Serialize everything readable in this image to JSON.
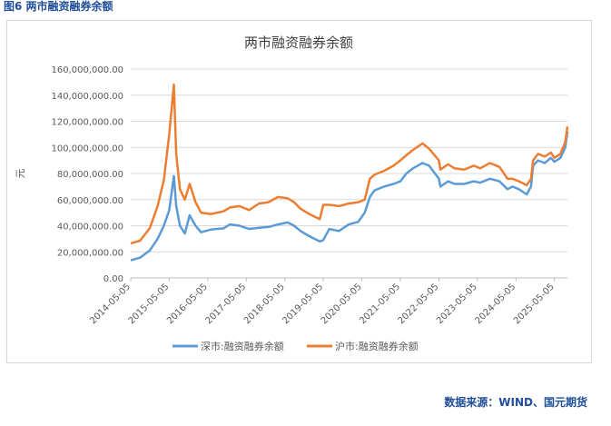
{
  "figure_caption": "图6 两市融资融券余额",
  "source_note": "数据来源：WIND、国元期货",
  "colors": {
    "sz": "#5b9bd5",
    "sh": "#ed7d31",
    "caption": "#1f4e9a"
  },
  "chart_data": {
    "type": "line",
    "title": "两市融资融券余额",
    "xlabel": "",
    "ylabel": "元",
    "ylim": [
      0,
      160000000
    ],
    "xlim": [
      "2014-05-05",
      "2025-09-05"
    ],
    "yticks": [
      0,
      20000000,
      40000000,
      60000000,
      80000000,
      100000000,
      120000000,
      140000000,
      160000000
    ],
    "ytick_labels": [
      "0.00",
      "20,000,000.00",
      "40,000,000.00",
      "60,000,000.00",
      "80,000,000.00",
      "100,000,000.00",
      "120,000,000.00",
      "140,000,000.00",
      "160,000,000.00"
    ],
    "xtick_labels": [
      "2014-05-05",
      "2015-05-05",
      "2016-05-05",
      "2017-05-05",
      "2018-05-05",
      "2019-05-05",
      "2020-05-05",
      "2021-05-05",
      "2022-05-05",
      "2023-05-05",
      "2024-05-05",
      "2025-05-05"
    ],
    "grid": "horizontal",
    "legend_position": "bottom",
    "series": [
      {
        "name": "深市:融资融券余额",
        "color": "#5b9bd5",
        "points": [
          [
            "2014-05-05",
            13500000
          ],
          [
            "2014-08-01",
            15500000
          ],
          [
            "2014-11-01",
            21000000
          ],
          [
            "2015-01-15",
            30000000
          ],
          [
            "2015-03-15",
            40000000
          ],
          [
            "2015-05-05",
            52000000
          ],
          [
            "2015-06-18",
            78000000
          ],
          [
            "2015-07-10",
            55000000
          ],
          [
            "2015-08-15",
            40000000
          ],
          [
            "2015-09-30",
            34000000
          ],
          [
            "2015-11-15",
            48000000
          ],
          [
            "2016-01-10",
            40000000
          ],
          [
            "2016-03-01",
            35000000
          ],
          [
            "2016-06-01",
            37000000
          ],
          [
            "2016-10-01",
            38000000
          ],
          [
            "2016-12-01",
            41000000
          ],
          [
            "2017-03-01",
            40000000
          ],
          [
            "2017-06-01",
            37500000
          ],
          [
            "2017-09-01",
            38500000
          ],
          [
            "2017-12-01",
            39000000
          ],
          [
            "2018-03-01",
            41000000
          ],
          [
            "2018-06-01",
            42500000
          ],
          [
            "2018-08-01",
            40000000
          ],
          [
            "2018-10-01",
            36000000
          ],
          [
            "2018-12-01",
            33000000
          ],
          [
            "2019-01-15",
            31000000
          ],
          [
            "2019-04-01",
            28000000
          ],
          [
            "2019-05-05",
            29000000
          ],
          [
            "2019-07-01",
            37500000
          ],
          [
            "2019-10-01",
            36000000
          ],
          [
            "2020-01-01",
            41000000
          ],
          [
            "2020-04-01",
            43000000
          ],
          [
            "2020-06-01",
            50000000
          ],
          [
            "2020-07-20",
            62000000
          ],
          [
            "2020-09-01",
            67000000
          ],
          [
            "2020-12-01",
            70000000
          ],
          [
            "2021-03-01",
            72000000
          ],
          [
            "2021-05-05",
            74000000
          ],
          [
            "2021-07-01",
            80000000
          ],
          [
            "2021-09-01",
            84000000
          ],
          [
            "2021-12-01",
            88000000
          ],
          [
            "2022-02-01",
            86000000
          ],
          [
            "2022-05-05",
            76000000
          ],
          [
            "2022-05-20",
            70000000
          ],
          [
            "2022-08-01",
            74000000
          ],
          [
            "2022-10-01",
            72000000
          ],
          [
            "2023-01-01",
            72000000
          ],
          [
            "2023-04-01",
            74000000
          ],
          [
            "2023-06-01",
            73000000
          ],
          [
            "2023-09-01",
            76000000
          ],
          [
            "2023-12-01",
            74000000
          ],
          [
            "2024-02-15",
            68000000
          ],
          [
            "2024-04-01",
            70000000
          ],
          [
            "2024-06-01",
            68000000
          ],
          [
            "2024-08-15",
            64000000
          ],
          [
            "2024-09-25",
            70000000
          ],
          [
            "2024-10-15",
            86000000
          ],
          [
            "2024-12-01",
            90000000
          ],
          [
            "2025-02-01",
            88000000
          ],
          [
            "2025-04-01",
            92000000
          ],
          [
            "2025-05-05",
            89000000
          ],
          [
            "2025-07-01",
            92000000
          ],
          [
            "2025-08-15",
            100000000
          ],
          [
            "2025-09-05",
            112000000
          ]
        ]
      },
      {
        "name": "沪市:融资融券余额",
        "color": "#ed7d31",
        "points": [
          [
            "2014-05-05",
            26500000
          ],
          [
            "2014-08-01",
            28500000
          ],
          [
            "2014-11-01",
            38000000
          ],
          [
            "2015-01-15",
            55000000
          ],
          [
            "2015-03-15",
            75000000
          ],
          [
            "2015-05-05",
            110000000
          ],
          [
            "2015-06-18",
            148000000
          ],
          [
            "2015-07-10",
            95000000
          ],
          [
            "2015-08-15",
            68000000
          ],
          [
            "2015-09-30",
            60000000
          ],
          [
            "2015-11-15",
            72000000
          ],
          [
            "2016-01-10",
            58000000
          ],
          [
            "2016-03-01",
            50000000
          ],
          [
            "2016-06-01",
            49000000
          ],
          [
            "2016-10-01",
            51000000
          ],
          [
            "2016-12-01",
            54000000
          ],
          [
            "2017-03-01",
            55000000
          ],
          [
            "2017-06-01",
            52000000
          ],
          [
            "2017-09-01",
            57000000
          ],
          [
            "2017-12-01",
            58000000
          ],
          [
            "2018-03-01",
            62000000
          ],
          [
            "2018-06-01",
            61000000
          ],
          [
            "2018-08-01",
            58000000
          ],
          [
            "2018-10-01",
            53000000
          ],
          [
            "2018-12-01",
            50000000
          ],
          [
            "2019-01-15",
            48000000
          ],
          [
            "2019-04-01",
            45000000
          ],
          [
            "2019-05-05",
            56000000
          ],
          [
            "2019-07-01",
            56000000
          ],
          [
            "2019-10-01",
            55000000
          ],
          [
            "2020-01-01",
            57000000
          ],
          [
            "2020-04-01",
            58000000
          ],
          [
            "2020-06-01",
            60000000
          ],
          [
            "2020-07-20",
            76000000
          ],
          [
            "2020-09-01",
            79000000
          ],
          [
            "2020-12-01",
            82000000
          ],
          [
            "2021-03-01",
            86000000
          ],
          [
            "2021-05-05",
            90000000
          ],
          [
            "2021-07-01",
            94000000
          ],
          [
            "2021-09-01",
            98000000
          ],
          [
            "2021-12-01",
            103000000
          ],
          [
            "2022-02-01",
            99000000
          ],
          [
            "2022-05-05",
            90000000
          ],
          [
            "2022-05-20",
            83000000
          ],
          [
            "2022-08-01",
            87000000
          ],
          [
            "2022-10-01",
            84000000
          ],
          [
            "2023-01-01",
            83000000
          ],
          [
            "2023-04-01",
            86000000
          ],
          [
            "2023-06-01",
            84000000
          ],
          [
            "2023-09-01",
            88000000
          ],
          [
            "2023-12-01",
            85000000
          ],
          [
            "2024-02-15",
            76000000
          ],
          [
            "2024-04-01",
            76000000
          ],
          [
            "2024-06-01",
            74000000
          ],
          [
            "2024-08-15",
            71000000
          ],
          [
            "2024-09-25",
            76000000
          ],
          [
            "2024-10-15",
            90000000
          ],
          [
            "2024-12-01",
            95000000
          ],
          [
            "2025-02-01",
            93000000
          ],
          [
            "2025-04-01",
            96000000
          ],
          [
            "2025-05-05",
            92000000
          ],
          [
            "2025-07-01",
            95000000
          ],
          [
            "2025-08-15",
            104000000
          ],
          [
            "2025-09-05",
            116000000
          ]
        ]
      }
    ]
  }
}
